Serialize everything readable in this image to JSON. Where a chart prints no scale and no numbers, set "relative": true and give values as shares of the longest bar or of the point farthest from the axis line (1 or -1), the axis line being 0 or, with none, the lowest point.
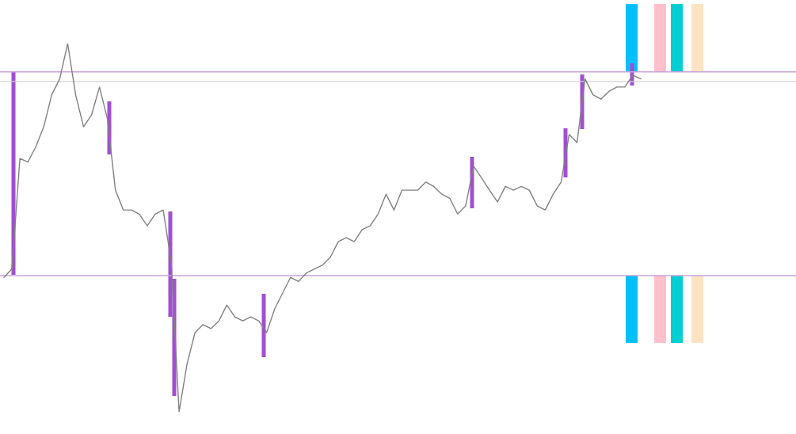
{
  "chart_data": {
    "type": "line",
    "relative": true,
    "tick_labels": false,
    "categories": [
      null,
      null,
      null,
      null,
      null,
      null,
      null,
      null,
      null,
      null,
      null,
      null,
      null,
      null,
      null,
      null,
      null,
      null,
      null,
      null,
      null,
      null,
      null,
      null,
      null,
      null,
      null,
      null,
      null,
      null,
      null,
      null,
      null,
      null,
      null,
      null,
      null,
      null,
      null,
      null,
      null,
      null,
      null,
      null,
      null,
      null,
      null,
      null,
      null,
      null,
      null,
      null,
      null,
      null,
      null,
      null,
      null,
      null,
      null,
      null,
      null,
      null,
      null,
      null,
      null,
      null,
      null,
      null,
      null,
      null,
      null,
      null,
      null,
      null,
      null,
      null,
      null,
      null,
      null,
      null,
      null
    ],
    "series": [
      {
        "color": "#808080",
        "values": [
          0.365,
          0.388,
          0.688,
          0.678,
          0.72,
          0.774,
          0.861,
          0.904,
          1.0,
          0.861,
          0.774,
          0.806,
          0.882,
          0.795,
          0.602,
          0.548,
          0.548,
          0.537,
          0.505,
          0.537,
          0.548,
          0.409,
          0.0,
          0.13,
          0.215,
          0.237,
          0.226,
          0.247,
          0.29,
          0.258,
          0.247,
          0.258,
          0.247,
          0.215,
          0.279,
          0.322,
          0.365,
          0.354,
          0.377,
          0.388,
          0.398,
          0.42,
          0.462,
          0.473,
          0.462,
          0.495,
          0.505,
          0.537,
          0.591,
          0.548,
          0.602,
          0.602,
          0.602,
          0.624,
          0.612,
          0.591,
          0.58,
          0.537,
          0.559,
          0.667,
          0.635,
          0.602,
          0.57,
          0.612,
          0.602,
          0.612,
          0.602,
          0.559,
          0.548,
          0.591,
          0.624,
          0.753,
          0.731,
          0.904,
          0.861,
          0.849,
          0.87,
          0.882,
          0.882,
          0.914,
          0.904
        ]
      }
    ],
    "ref_lines": [
      {
        "axis": "y",
        "value": 0.923,
        "color": "#c9a3dc"
      },
      {
        "axis": "y",
        "value": 0.897,
        "color": "#d4d0d6"
      },
      {
        "axis": "y",
        "value": 0.37,
        "color": "#c9a3dc"
      }
    ]
  }
}
